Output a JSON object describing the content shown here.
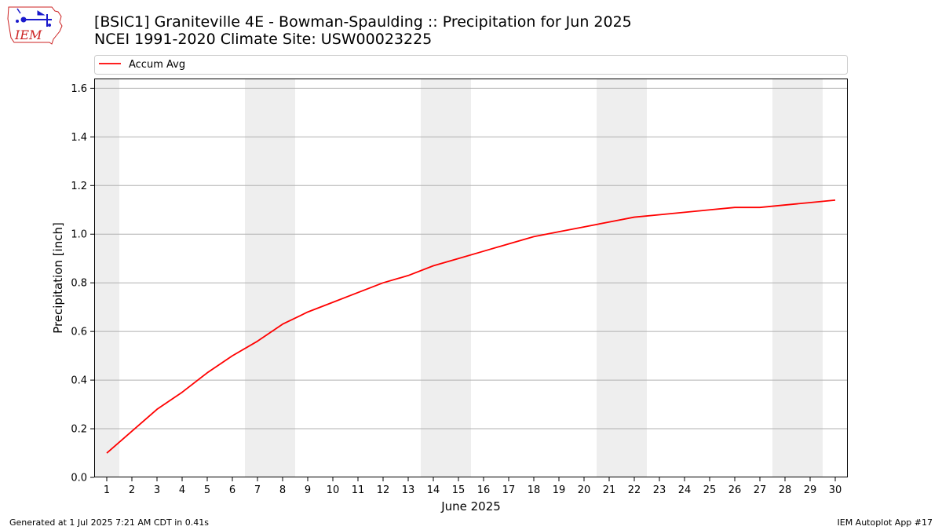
{
  "header": {
    "title_line1": "[BSIC1] Graniteville 4E - Bowman-Spaulding :: Precipitation for Jun 2025",
    "title_line2": "NCEI 1991-2020 Climate Site: USW00023225",
    "logo_text": "IEM"
  },
  "footer": {
    "left": "Generated at 1 Jul 2025 7:21 AM CDT in 0.41s",
    "right": "IEM Autoplot App #17"
  },
  "colors": {
    "line": "#ff0000",
    "weekend_shade": "#eeeeee",
    "grid": "#b0b0b0",
    "logo_red": "#cc2222",
    "logo_blue": "#1a1acc"
  },
  "chart_data": {
    "type": "line",
    "title": "",
    "xlabel": "June 2025",
    "ylabel": "Precipitation [inch]",
    "x": [
      1,
      2,
      3,
      4,
      5,
      6,
      7,
      8,
      9,
      10,
      11,
      12,
      13,
      14,
      15,
      16,
      17,
      18,
      19,
      20,
      21,
      22,
      23,
      24,
      25,
      26,
      27,
      28,
      29,
      30
    ],
    "xlim": [
      0.5,
      30.5
    ],
    "ylim": [
      0,
      1.64
    ],
    "yticks": [
      0.0,
      0.2,
      0.4,
      0.6,
      0.8,
      1.0,
      1.2,
      1.4,
      1.6
    ],
    "y_tick_labels": [
      "0.0",
      "0.2",
      "0.4",
      "0.6",
      "0.8",
      "1.0",
      "1.2",
      "1.4",
      "1.6"
    ],
    "x_tick_labels": [
      "1",
      "2",
      "3",
      "4",
      "5",
      "6",
      "7",
      "8",
      "9",
      "10",
      "11",
      "12",
      "13",
      "14",
      "15",
      "16",
      "17",
      "18",
      "19",
      "20",
      "21",
      "22",
      "23",
      "24",
      "25",
      "26",
      "27",
      "28",
      "29",
      "30"
    ],
    "grid": "horizontal",
    "legend_position": "top, above plot",
    "weekend_days": [
      1,
      7,
      8,
      14,
      15,
      21,
      22,
      28,
      29
    ],
    "series": [
      {
        "name": "Accum Avg",
        "values": [
          0.1,
          0.19,
          0.28,
          0.35,
          0.43,
          0.5,
          0.56,
          0.63,
          0.68,
          0.72,
          0.76,
          0.8,
          0.83,
          0.87,
          0.9,
          0.93,
          0.96,
          0.99,
          1.01,
          1.03,
          1.05,
          1.07,
          1.08,
          1.09,
          1.1,
          1.11,
          1.11,
          1.12,
          1.13,
          1.14
        ]
      }
    ]
  }
}
